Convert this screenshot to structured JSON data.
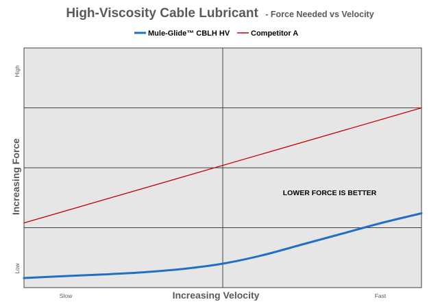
{
  "title": "High-Viscosity Cable Lubricant",
  "subtitle": "- Force Needed vs Velocity",
  "legend": [
    {
      "label": "Mule-Glide™ CBLH HV",
      "color": "#1f6fc5"
    },
    {
      "label": "Competitor A",
      "color": "#c00000"
    }
  ],
  "annotation": "LOWER FORCE IS BETTER",
  "chart_data": {
    "type": "line",
    "xlabel": "Increasing Velocity",
    "ylabel": "Increasing Force",
    "x_ticks": [
      "Slow",
      "Fast"
    ],
    "y_ticks": [
      "Low",
      "High"
    ],
    "xlim": [
      0,
      1
    ],
    "ylim": [
      0,
      1
    ],
    "grid": true,
    "legend_position": "top",
    "plot_background": "#e6e6e6",
    "series": [
      {
        "name": "Mule-Glide™ CBLH HV",
        "color": "#1f6fc5",
        "x": [
          0,
          0.1,
          0.2,
          0.3,
          0.4,
          0.5,
          0.6,
          0.7,
          0.8,
          0.9,
          1.0
        ],
        "y": [
          0.04,
          0.048,
          0.055,
          0.064,
          0.078,
          0.1,
          0.135,
          0.18,
          0.225,
          0.27,
          0.31
        ]
      },
      {
        "name": "Competitor A",
        "color": "#c00000",
        "x": [
          0,
          1.0
        ],
        "y": [
          0.27,
          0.75
        ]
      }
    ]
  }
}
